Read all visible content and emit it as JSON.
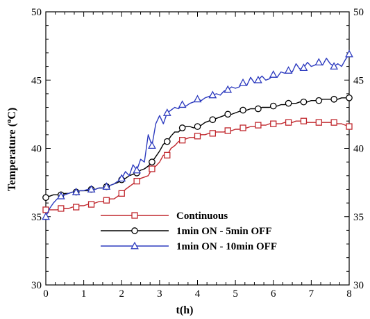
{
  "chart_data": {
    "type": "line",
    "xlabel": "t(h)",
    "ylabel": "Temperature (",
    "ylabel_sup": "o",
    "ylabel_tail": "C)",
    "xlim": [
      0,
      8
    ],
    "ylim": [
      30,
      50
    ],
    "x_ticks": [
      0,
      1,
      2,
      3,
      4,
      5,
      6,
      7,
      8
    ],
    "y_ticks": [
      30,
      35,
      40,
      45,
      50
    ],
    "x_tick_labels": [
      "0",
      "1",
      "2",
      "3",
      "4",
      "5",
      "6",
      "7",
      "8"
    ],
    "y_tick_labels": [
      "30",
      "35",
      "40",
      "45",
      "50"
    ],
    "grid": false,
    "legend_position": "lower-center",
    "series": [
      {
        "name": "Continuous",
        "color": "#c0272d",
        "marker": "square",
        "x": [
          0.0,
          0.1,
          0.2,
          0.3,
          0.4,
          0.5,
          0.6,
          0.7,
          0.8,
          0.9,
          1.0,
          1.1,
          1.2,
          1.3,
          1.4,
          1.5,
          1.6,
          1.7,
          1.8,
          1.9,
          2.0,
          2.1,
          2.2,
          2.3,
          2.4,
          2.5,
          2.6,
          2.7,
          2.8,
          2.9,
          3.0,
          3.1,
          3.2,
          3.3,
          3.4,
          3.5,
          3.6,
          3.7,
          3.8,
          3.9,
          4.0,
          4.1,
          4.2,
          4.3,
          4.4,
          4.5,
          4.6,
          4.7,
          4.8,
          4.9,
          5.0,
          5.1,
          5.2,
          5.3,
          5.4,
          5.5,
          5.6,
          5.7,
          5.8,
          5.9,
          6.0,
          6.1,
          6.2,
          6.3,
          6.4,
          6.5,
          6.6,
          6.7,
          6.8,
          6.9,
          7.0,
          7.1,
          7.2,
          7.3,
          7.4,
          7.5,
          7.6,
          7.7,
          7.8,
          7.9,
          8.0
        ],
        "y": [
          35.5,
          35.5,
          35.5,
          35.5,
          35.6,
          35.6,
          35.6,
          35.7,
          35.7,
          35.8,
          35.8,
          35.9,
          35.9,
          36.0,
          36.1,
          36.1,
          36.2,
          36.3,
          36.3,
          36.5,
          36.7,
          37.0,
          37.2,
          37.4,
          37.6,
          37.8,
          37.9,
          38.0,
          38.5,
          38.7,
          39.0,
          39.5,
          39.5,
          40.0,
          40.2,
          40.5,
          40.6,
          40.7,
          40.8,
          40.8,
          40.9,
          41.0,
          41.0,
          41.1,
          41.1,
          41.2,
          41.2,
          41.2,
          41.3,
          41.3,
          41.4,
          41.4,
          41.5,
          41.5,
          41.6,
          41.6,
          41.7,
          41.7,
          41.7,
          41.8,
          41.8,
          41.8,
          41.8,
          41.9,
          41.9,
          41.9,
          42.0,
          42.0,
          42.0,
          41.9,
          41.9,
          41.9,
          41.9,
          41.9,
          41.9,
          41.9,
          41.9,
          41.8,
          41.8,
          41.7,
          41.6
        ],
        "marker_every": 4
      },
      {
        "name": "1min ON - 5min OFF",
        "color": "#000000",
        "marker": "circle",
        "x": [
          0.0,
          0.1,
          0.2,
          0.3,
          0.4,
          0.5,
          0.6,
          0.7,
          0.8,
          0.9,
          1.0,
          1.1,
          1.2,
          1.3,
          1.4,
          1.5,
          1.6,
          1.7,
          1.8,
          1.9,
          2.0,
          2.1,
          2.2,
          2.3,
          2.4,
          2.5,
          2.6,
          2.7,
          2.8,
          2.9,
          3.0,
          3.1,
          3.2,
          3.3,
          3.4,
          3.5,
          3.6,
          3.7,
          3.8,
          3.9,
          4.0,
          4.1,
          4.2,
          4.3,
          4.4,
          4.5,
          4.6,
          4.7,
          4.8,
          4.9,
          5.0,
          5.1,
          5.2,
          5.3,
          5.4,
          5.5,
          5.6,
          5.7,
          5.8,
          5.9,
          6.0,
          6.1,
          6.2,
          6.3,
          6.4,
          6.5,
          6.6,
          6.7,
          6.8,
          6.9,
          7.0,
          7.1,
          7.2,
          7.3,
          7.4,
          7.5,
          7.6,
          7.7,
          7.8,
          7.9,
          8.0
        ],
        "y": [
          36.4,
          36.5,
          36.6,
          36.6,
          36.6,
          36.7,
          36.7,
          36.8,
          36.8,
          36.9,
          36.9,
          36.9,
          37.0,
          37.0,
          37.1,
          37.1,
          37.2,
          37.3,
          37.4,
          37.5,
          37.7,
          37.8,
          38.0,
          38.1,
          38.2,
          38.4,
          38.5,
          38.7,
          39.0,
          39.4,
          39.8,
          40.3,
          40.5,
          40.9,
          41.2,
          41.2,
          41.5,
          41.6,
          41.6,
          41.5,
          41.6,
          41.7,
          41.9,
          42.0,
          42.1,
          42.2,
          42.3,
          42.4,
          42.5,
          42.5,
          42.6,
          42.7,
          42.8,
          42.8,
          42.9,
          42.9,
          42.9,
          43.0,
          43.0,
          43.0,
          43.1,
          43.1,
          43.2,
          43.2,
          43.3,
          43.3,
          43.3,
          43.4,
          43.4,
          43.4,
          43.5,
          43.5,
          43.5,
          43.6,
          43.6,
          43.6,
          43.6,
          43.6,
          43.7,
          43.7,
          43.7
        ],
        "marker_every": 4
      },
      {
        "name": "1min ON - 10min OFF",
        "color": "#2d3bbf",
        "marker": "triangle",
        "x": [
          0.0,
          0.1,
          0.2,
          0.3,
          0.4,
          0.5,
          0.6,
          0.7,
          0.8,
          0.9,
          1.0,
          1.1,
          1.2,
          1.3,
          1.4,
          1.5,
          1.6,
          1.7,
          1.8,
          1.9,
          2.0,
          2.1,
          2.2,
          2.3,
          2.4,
          2.5,
          2.6,
          2.7,
          2.8,
          2.9,
          3.0,
          3.1,
          3.2,
          3.3,
          3.4,
          3.5,
          3.6,
          3.7,
          3.8,
          3.9,
          4.0,
          4.1,
          4.2,
          4.3,
          4.4,
          4.5,
          4.6,
          4.7,
          4.8,
          4.9,
          5.0,
          5.1,
          5.2,
          5.3,
          5.4,
          5.5,
          5.6,
          5.7,
          5.8,
          5.9,
          6.0,
          6.1,
          6.2,
          6.3,
          6.4,
          6.5,
          6.6,
          6.7,
          6.8,
          6.9,
          7.0,
          7.1,
          7.2,
          7.3,
          7.4,
          7.5,
          7.6,
          7.7,
          7.8,
          7.9,
          8.0
        ],
        "y": [
          35.0,
          35.6,
          36.0,
          36.3,
          36.5,
          36.6,
          36.7,
          36.8,
          36.8,
          36.9,
          36.9,
          37.0,
          37.0,
          37.0,
          37.1,
          37.1,
          37.2,
          37.3,
          37.4,
          37.6,
          37.8,
          38.3,
          38.0,
          38.8,
          38.4,
          39.2,
          39.0,
          41.0,
          40.2,
          41.8,
          42.4,
          41.8,
          42.6,
          42.8,
          43.0,
          42.9,
          43.2,
          43.1,
          43.3,
          43.4,
          43.6,
          43.5,
          43.7,
          43.8,
          43.9,
          44.0,
          43.9,
          44.2,
          44.3,
          44.5,
          44.4,
          44.5,
          44.8,
          44.6,
          45.2,
          44.8,
          45.0,
          45.3,
          45.0,
          45.1,
          45.4,
          45.2,
          45.6,
          45.5,
          45.7,
          45.6,
          46.2,
          45.8,
          45.9,
          46.3,
          46.0,
          46.1,
          46.3,
          46.1,
          46.6,
          46.2,
          46.0,
          46.2,
          46.0,
          46.5,
          46.9
        ],
        "marker_every": 4
      }
    ]
  }
}
